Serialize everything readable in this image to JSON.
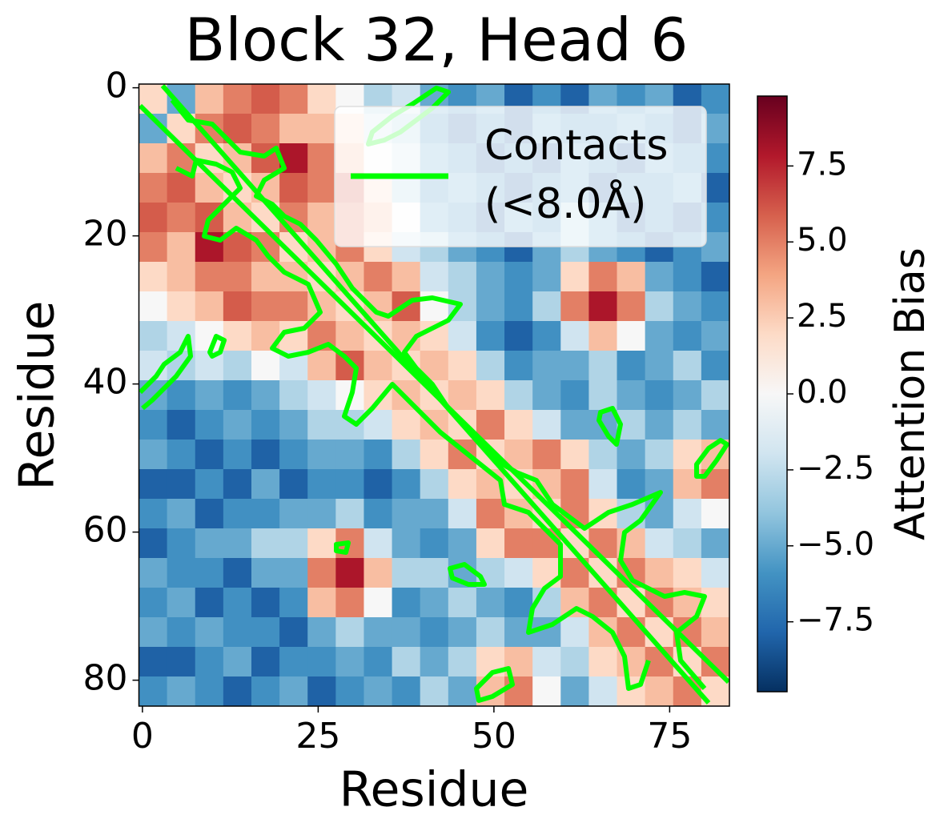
{
  "chart_data": {
    "type": "heatmap",
    "title": "Block 32, Head 6",
    "xlabel": "Residue",
    "ylabel": "Residue",
    "colorbar_label": "Attention Bias",
    "colormap": "RdBu_r",
    "legend": [
      "Contacts",
      "(<8.0Å)"
    ],
    "legend_loc": "upper right",
    "contour_color": "#00ff00",
    "bins": [
      -0.5,
      3.5,
      7.5,
      11.5,
      15.5,
      19.5,
      23.5,
      27.5,
      31.5,
      35.5,
      39.5,
      43.5,
      47.5,
      51.5,
      55.5,
      59.5,
      63.5,
      67.5,
      71.5,
      75.5,
      79.5,
      83.5
    ],
    "values": [
      [
        2,
        -5,
        3,
        5,
        6,
        5,
        2,
        0,
        -3,
        -2,
        -5,
        -6,
        -5,
        -8,
        -6,
        -8,
        -5,
        -6,
        -5,
        -8,
        -6
      ],
      [
        -5,
        2,
        5,
        6,
        5,
        3,
        3,
        2,
        -2,
        -3,
        -6,
        -8,
        -6,
        -8,
        -5,
        -6,
        -6,
        -5,
        -6,
        -8,
        -5
      ],
      [
        3,
        5,
        2,
        3,
        6,
        8,
        5,
        3,
        0,
        -2,
        -5,
        -6,
        -8,
        -6,
        -8,
        -5,
        -6,
        -8,
        -5,
        -6,
        -6
      ],
      [
        5,
        6,
        3,
        2,
        3,
        6,
        5,
        6,
        2,
        -3,
        -6,
        -5,
        -6,
        -8,
        -6,
        -5,
        -8,
        -6,
        -6,
        -5,
        -8
      ],
      [
        6,
        5,
        6,
        3,
        2,
        5,
        3,
        5,
        3,
        0,
        -5,
        -6,
        -8,
        -5,
        -6,
        -3,
        -5,
        -8,
        -6,
        -8,
        -6
      ],
      [
        5,
        3,
        8,
        6,
        5,
        2,
        3,
        5,
        2,
        -2,
        -3,
        -5,
        -6,
        -8,
        -5,
        -3,
        -5,
        -6,
        -8,
        -6,
        -5
      ],
      [
        2,
        3,
        5,
        5,
        3,
        3,
        2,
        3,
        5,
        3,
        -2,
        -3,
        -5,
        -6,
        -5,
        2,
        5,
        3,
        -5,
        -6,
        -8
      ],
      [
        0,
        2,
        3,
        6,
        5,
        5,
        3,
        2,
        3,
        6,
        0,
        -3,
        -5,
        -6,
        -3,
        5,
        8,
        5,
        -3,
        -5,
        -6
      ],
      [
        -3,
        -2,
        0,
        2,
        3,
        2,
        5,
        3,
        2,
        3,
        2,
        -2,
        -6,
        -8,
        -6,
        -2,
        3,
        0,
        -5,
        -6,
        -5
      ],
      [
        -2,
        -3,
        -2,
        -3,
        0,
        -2,
        3,
        6,
        3,
        2,
        3,
        2,
        -3,
        -6,
        -5,
        -5,
        -3,
        -6,
        -5,
        -3,
        -6
      ],
      [
        -5,
        -6,
        -5,
        -6,
        -5,
        -3,
        -2,
        0,
        2,
        3,
        2,
        3,
        2,
        -3,
        -5,
        -6,
        -3,
        -5,
        -6,
        -5,
        -3
      ],
      [
        -6,
        -8,
        -6,
        -5,
        -6,
        -5,
        -3,
        -3,
        -2,
        2,
        3,
        2,
        5,
        2,
        -2,
        -5,
        -5,
        -3,
        -5,
        -3,
        -5
      ],
      [
        -5,
        -6,
        -8,
        -6,
        -8,
        -6,
        -5,
        -5,
        -6,
        -3,
        2,
        5,
        2,
        3,
        5,
        2,
        -3,
        -5,
        -3,
        2,
        3
      ],
      [
        -8,
        -8,
        -6,
        -8,
        -5,
        -8,
        -6,
        -6,
        -8,
        -6,
        -3,
        2,
        3,
        2,
        3,
        5,
        -2,
        -6,
        -5,
        3,
        5
      ],
      [
        -6,
        -5,
        -8,
        -6,
        -6,
        -5,
        -5,
        -3,
        -6,
        -5,
        -5,
        -2,
        5,
        3,
        2,
        5,
        2,
        -3,
        -5,
        -2,
        0
      ],
      [
        -8,
        -6,
        -5,
        -5,
        -3,
        -3,
        2,
        5,
        -2,
        -5,
        -6,
        -5,
        2,
        5,
        5,
        2,
        5,
        3,
        -2,
        -3,
        -5
      ],
      [
        -5,
        -6,
        -6,
        -8,
        -5,
        -5,
        5,
        8,
        3,
        -3,
        -3,
        -5,
        -3,
        -2,
        2,
        5,
        2,
        5,
        3,
        2,
        -2
      ],
      [
        -6,
        -5,
        -8,
        -6,
        -8,
        -6,
        3,
        5,
        0,
        -6,
        -5,
        -3,
        -5,
        -6,
        -3,
        3,
        5,
        2,
        5,
        3,
        2
      ],
      [
        -5,
        -6,
        -5,
        -6,
        -6,
        -8,
        -5,
        -3,
        -5,
        -5,
        -6,
        -5,
        -3,
        -5,
        -5,
        -2,
        3,
        5,
        2,
        5,
        3
      ],
      [
        -8,
        -8,
        -6,
        -5,
        -8,
        -6,
        -6,
        -5,
        -6,
        -3,
        -5,
        -3,
        2,
        3,
        -2,
        -3,
        2,
        3,
        5,
        2,
        5
      ],
      [
        -6,
        -5,
        -6,
        -8,
        -6,
        -5,
        -8,
        -6,
        -5,
        -6,
        -3,
        -5,
        3,
        5,
        0,
        -5,
        -2,
        2,
        3,
        5,
        2
      ]
    ],
    "xlim": [
      -0.5,
      83.5
    ],
    "ylim": [
      -0.5,
      83.5
    ],
    "xticks": [
      0,
      25,
      50,
      75
    ],
    "yticks": [
      0,
      20,
      40,
      60,
      80
    ],
    "clim": [
      -9.8,
      9.8
    ],
    "cticks": [
      {
        "value": -7.5,
        "label": "−7.5"
      },
      {
        "value": -5,
        "label": "−5.0"
      },
      {
        "value": -2.5,
        "label": "−2.5"
      },
      {
        "value": 0,
        "label": "0.0"
      },
      2.5,
      {
        "value": 5,
        "label": "5.0"
      },
      7.5
    ]
  }
}
